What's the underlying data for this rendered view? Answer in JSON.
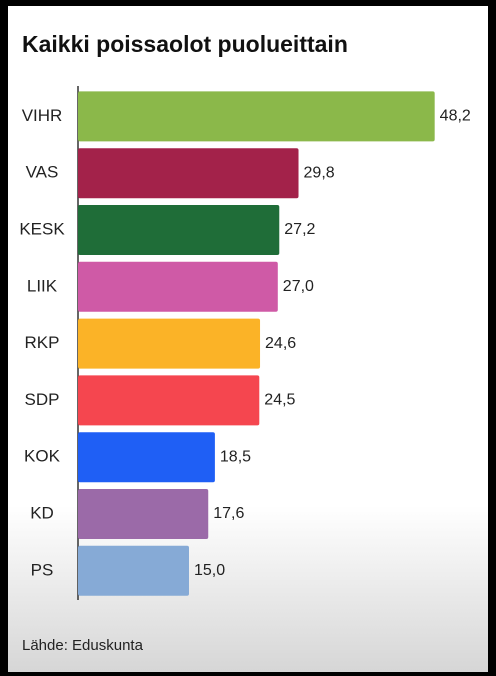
{
  "chart_data": {
    "type": "bar",
    "orientation": "horizontal",
    "title": "Kaikki poissaolot puolueittain",
    "source": "Lähde: Eduskunta",
    "categories": [
      "VIHR",
      "VAS",
      "KESK",
      "LIIK",
      "RKP",
      "SDP",
      "KOK",
      "KD",
      "PS"
    ],
    "values": [
      48.2,
      29.8,
      27.2,
      27.0,
      24.6,
      24.5,
      18.5,
      17.6,
      15.0
    ],
    "value_labels": [
      "48,2",
      "29,8",
      "27,2",
      "27,0",
      "24,6",
      "24,5",
      "18,5",
      "17,6",
      "15,0"
    ],
    "colors": [
      "#8bb84a",
      "#a3224a",
      "#1f6d38",
      "#cf5aa6",
      "#fbb327",
      "#f5464f",
      "#1f5ff5",
      "#9b6aa8",
      "#86aad6"
    ],
    "xlim": [
      0,
      50
    ]
  }
}
